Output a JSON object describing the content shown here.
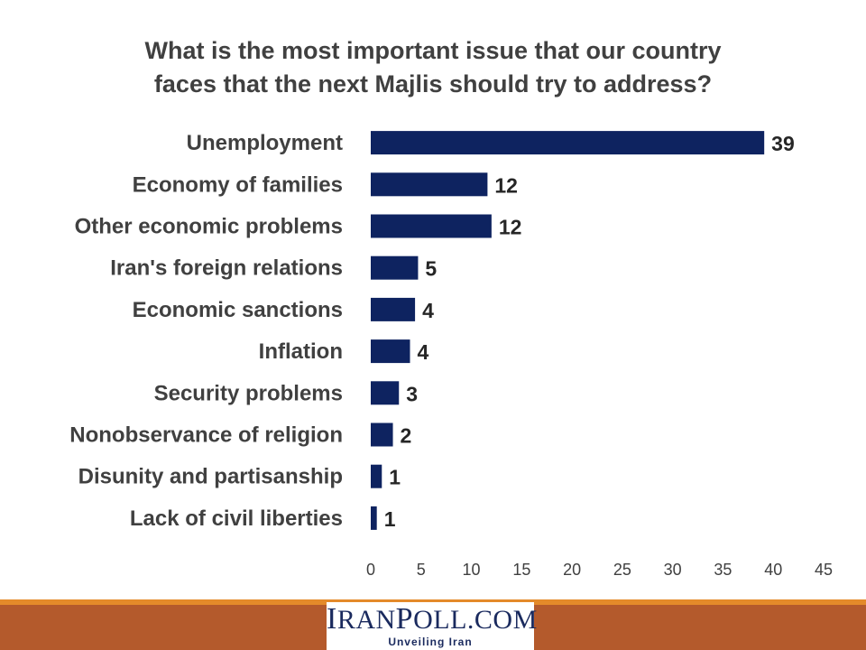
{
  "chart_data": {
    "type": "bar",
    "orientation": "horizontal",
    "title_lines": [
      "What is the most important issue that our country",
      "faces that the next Majlis should try to address?"
    ],
    "categories": [
      "Unemployment",
      "Economy of families",
      "Other economic problems",
      "Iran's foreign relations",
      "Economic sanctions",
      "Inflation",
      "Security problems",
      "Nonobservance of religion",
      "Disunity and partisanship",
      "Lack of civil liberties"
    ],
    "values": [
      39,
      12,
      12,
      5,
      4,
      4,
      3,
      2,
      1,
      1
    ],
    "value_positions": [
      39.1,
      11.6,
      12.0,
      4.7,
      4.4,
      3.9,
      2.8,
      2.2,
      1.1,
      0.6
    ],
    "xlim": [
      0,
      45
    ],
    "xticks": [
      0,
      5,
      10,
      15,
      20,
      25,
      30,
      35,
      40,
      45
    ],
    "bar_color": "#0e2360",
    "grid": false,
    "legend": "none"
  },
  "footer": {
    "logo_first": "I",
    "logo_rest1": "RAN",
    "logo_p": "P",
    "logo_rest2": "OLL.COM",
    "tagline": "Unveiling Iran"
  }
}
